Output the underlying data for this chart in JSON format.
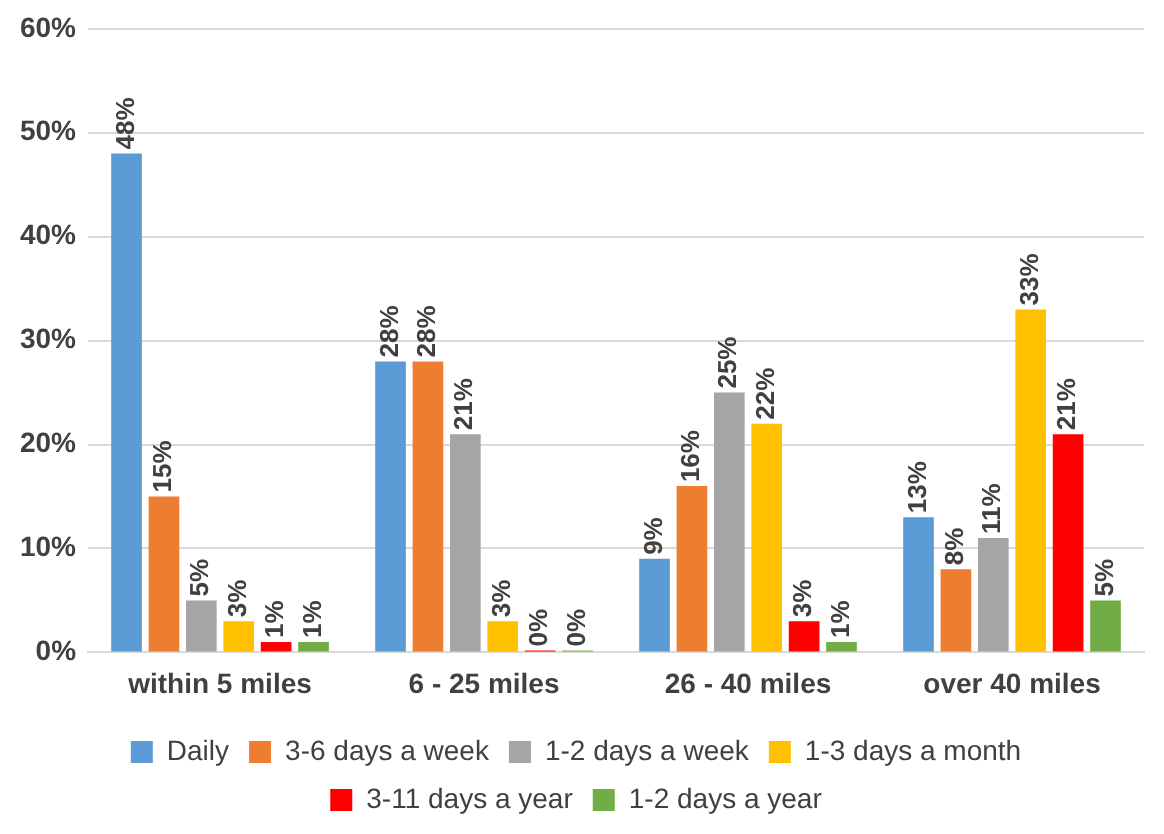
{
  "chart_data": {
    "type": "bar",
    "categories": [
      "within 5 miles",
      "6 - 25 miles",
      "26 - 40 miles",
      "over 40 miles"
    ],
    "series": [
      {
        "name": "Daily",
        "color": "#5b9bd5",
        "values": [
          48,
          28,
          9,
          13
        ],
        "value_labels": [
          "48%",
          "28%",
          "9%",
          "13%"
        ]
      },
      {
        "name": "3-6 days a week",
        "color": "#ed7d31",
        "values": [
          15,
          28,
          16,
          8
        ],
        "value_labels": [
          "15%",
          "28%",
          "16%",
          "8%"
        ]
      },
      {
        "name": "1-2 days a week",
        "color": "#a5a5a5",
        "values": [
          5,
          21,
          25,
          11
        ],
        "value_labels": [
          "5%",
          "21%",
          "25%",
          "11%"
        ]
      },
      {
        "name": "1-3 days a month",
        "color": "#ffc000",
        "values": [
          3,
          3,
          22,
          33
        ],
        "value_labels": [
          "3%",
          "3%",
          "22%",
          "33%"
        ]
      },
      {
        "name": "3-11 days a year",
        "color": "#ff0000",
        "values": [
          1,
          0,
          3,
          21
        ],
        "value_labels": [
          "1%",
          "0%",
          "3%",
          "21%"
        ]
      },
      {
        "name": "1-2 days a year",
        "color": "#70ad47",
        "values": [
          1,
          0,
          1,
          5
        ],
        "value_labels": [
          "1%",
          "0%",
          "1%",
          "5%"
        ]
      }
    ],
    "ylim": [
      0,
      60
    ],
    "yticks": [
      {
        "value": 0,
        "label": "0%"
      },
      {
        "value": 10,
        "label": "10%"
      },
      {
        "value": 20,
        "label": "20%"
      },
      {
        "value": 30,
        "label": "30%"
      },
      {
        "value": 40,
        "label": "40%"
      },
      {
        "value": 50,
        "label": "50%"
      },
      {
        "value": 60,
        "label": "60%"
      }
    ],
    "grid": "y",
    "legend": "bottom"
  }
}
